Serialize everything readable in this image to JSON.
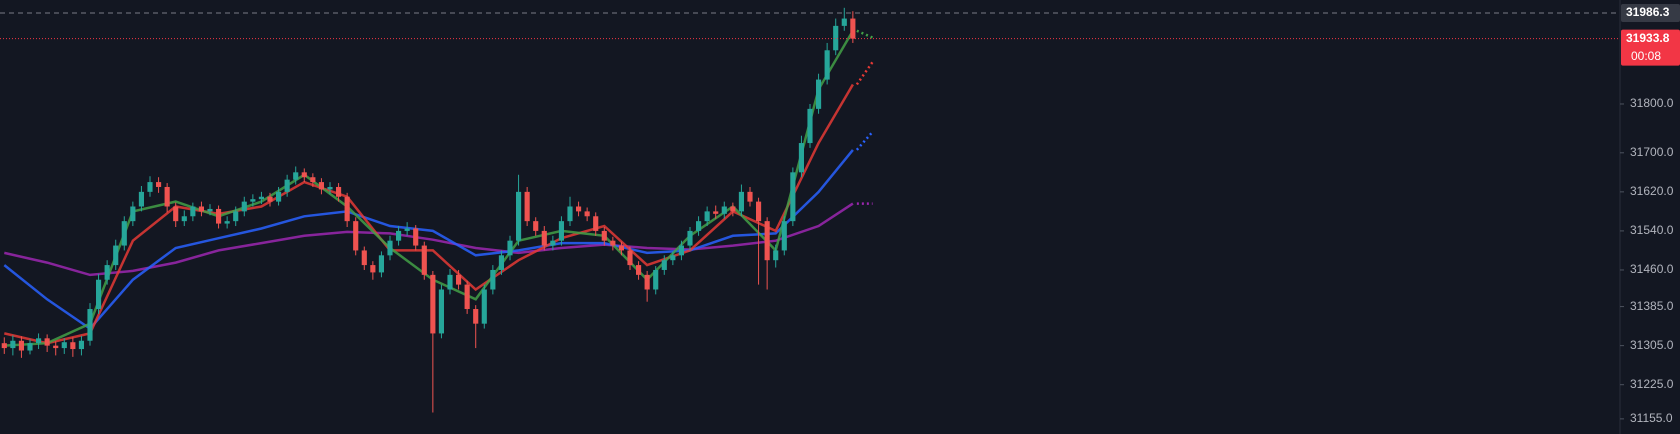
{
  "chart_data": {
    "type": "candlestick",
    "up_color": "#26a69a",
    "down_color": "#ef5350",
    "open": [
      31310,
      31300,
      31315,
      31295,
      31310,
      31320,
      31305,
      31300,
      31312,
      31298,
      31315,
      31380,
      31440,
      31470,
      31510,
      31560,
      31590,
      31620,
      31640,
      31630,
      31590,
      31560,
      31570,
      31590,
      31580,
      31585,
      31555,
      31560,
      31580,
      31600,
      31605,
      31610,
      31600,
      31620,
      31645,
      31660,
      31650,
      31640,
      31625,
      31630,
      31610,
      31560,
      31500,
      31470,
      31455,
      31490,
      31520,
      31540,
      31545,
      31510,
      31450,
      31330,
      31420,
      31450,
      31430,
      31380,
      31350,
      31420,
      31460,
      31490,
      31520,
      31620,
      31560,
      31540,
      31510,
      31520,
      31560,
      31590,
      31580,
      31570,
      31540,
      31520,
      31510,
      31500,
      31470,
      31450,
      31420,
      31460,
      31480,
      31490,
      31510,
      31540,
      31560,
      31580,
      31575,
      31590,
      31580,
      31620,
      31600,
      31560,
      31480,
      31500,
      31560,
      31660,
      31720,
      31790,
      31850,
      31910,
      31960,
      31975
    ],
    "high": [
      31322,
      31326,
      31324,
      31318,
      31330,
      31328,
      31314,
      31320,
      31322,
      31325,
      31392,
      31452,
      31480,
      31522,
      31570,
      31600,
      31632,
      31652,
      31650,
      31638,
      31598,
      31582,
      31598,
      31600,
      31595,
      31592,
      31570,
      31590,
      31610,
      31615,
      31620,
      31618,
      31630,
      31655,
      31672,
      31668,
      31658,
      31648,
      31640,
      31638,
      31618,
      31568,
      31508,
      31478,
      31498,
      31530,
      31550,
      31558,
      31552,
      31518,
      31458,
      31430,
      31462,
      31460,
      31438,
      31388,
      31430,
      31470,
      31500,
      31530,
      31655,
      31630,
      31568,
      31550,
      31530,
      31570,
      31610,
      31600,
      31588,
      31578,
      31548,
      31528,
      31518,
      31508,
      31478,
      31458,
      31468,
      31490,
      31498,
      31520,
      31548,
      31570,
      31590,
      31592,
      31600,
      31598,
      31635,
      31630,
      31608,
      31568,
      31512,
      31570,
      31670,
      31735,
      31800,
      31862,
      31925,
      31975,
      31997,
      31990
    ],
    "low": [
      31288,
      31285,
      31280,
      31287,
      31298,
      31292,
      31285,
      31288,
      31282,
      31285,
      31305,
      31370,
      31430,
      31460,
      31500,
      31550,
      31580,
      31610,
      31618,
      31578,
      31548,
      31550,
      31560,
      31570,
      31572,
      31545,
      31545,
      31550,
      31570,
      31590,
      31595,
      31590,
      31592,
      31610,
      31635,
      31640,
      31630,
      31615,
      31615,
      31600,
      31548,
      31490,
      31460,
      31440,
      31445,
      31480,
      31510,
      31530,
      31500,
      31440,
      31168,
      31320,
      31410,
      31420,
      31370,
      31300,
      31340,
      31410,
      31450,
      31480,
      31510,
      31550,
      31530,
      31500,
      31500,
      31510,
      31550,
      31570,
      31560,
      31530,
      31510,
      31500,
      31490,
      31460,
      31440,
      31395,
      31410,
      31450,
      31470,
      31480,
      31500,
      31530,
      31550,
      31565,
      31565,
      31570,
      31570,
      31590,
      31430,
      31420,
      31465,
      31490,
      31550,
      31650,
      31710,
      31780,
      31840,
      31900,
      31950,
      31925
    ],
    "close": [
      31300,
      31315,
      31295,
      31310,
      31320,
      31305,
      31300,
      31312,
      31298,
      31315,
      31380,
      31440,
      31470,
      31510,
      31560,
      31590,
      31620,
      31640,
      31630,
      31590,
      31560,
      31570,
      31590,
      31580,
      31585,
      31555,
      31560,
      31580,
      31600,
      31605,
      31610,
      31600,
      31620,
      31645,
      31660,
      31650,
      31640,
      31625,
      31630,
      31610,
      31560,
      31500,
      31470,
      31455,
      31490,
      31520,
      31540,
      31545,
      31510,
      31450,
      31330,
      31420,
      31450,
      31430,
      31380,
      31350,
      31420,
      31460,
      31490,
      31520,
      31620,
      31560,
      31540,
      31510,
      31520,
      31560,
      31590,
      31580,
      31570,
      31540,
      31520,
      31510,
      31500,
      31470,
      31450,
      31420,
      31460,
      31480,
      31490,
      31510,
      31540,
      31560,
      31580,
      31575,
      31590,
      31580,
      31620,
      31600,
      31560,
      31480,
      31500,
      31560,
      31660,
      31720,
      31790,
      31850,
      31910,
      31960,
      31975,
      31933.8
    ],
    "ma_x": [
      0,
      5,
      10,
      15,
      20,
      25,
      30,
      35,
      40,
      45,
      50,
      55,
      60,
      65,
      70,
      75,
      80,
      85,
      90,
      95,
      99
    ],
    "series": [
      {
        "color": "#9c27b0",
        "values": [
          31495,
          31475,
          31450,
          31458,
          31475,
          31500,
          31515,
          31530,
          31538,
          31535,
          31522,
          31505,
          31495,
          31505,
          31512,
          31505,
          31502,
          31510,
          31520,
          31550,
          31596
        ],
        "projection": 31596
      },
      {
        "color": "#2962ff",
        "values": [
          31470,
          31400,
          31340,
          31440,
          31505,
          31525,
          31545,
          31570,
          31580,
          31550,
          31540,
          31490,
          31500,
          31515,
          31515,
          31495,
          31500,
          31530,
          31535,
          31620,
          31706
        ],
        "projection": 31743
      },
      {
        "color": "#e53935",
        "values": [
          31330,
          31310,
          31330,
          31520,
          31590,
          31575,
          31590,
          31640,
          31610,
          31500,
          31500,
          31420,
          31480,
          31525,
          31550,
          31470,
          31500,
          31580,
          31540,
          31720,
          31840
        ],
        "projection": 31886
      },
      {
        "color": "#43a047",
        "values": [
          31305,
          31310,
          31350,
          31580,
          31600,
          31570,
          31600,
          31655,
          31590,
          31505,
          31440,
          31400,
          31520,
          31540,
          31530,
          31440,
          31530,
          31590,
          31500,
          31830,
          31950
        ],
        "projection": 31936
      }
    ],
    "ylim": [
      31124,
      32013
    ],
    "yticks": [
      {
        "value": 31155,
        "label": "31155.0"
      },
      {
        "value": 31225,
        "label": "31225.0"
      },
      {
        "value": 31305,
        "label": "31305.0"
      },
      {
        "value": 31385,
        "label": "31385.0"
      },
      {
        "value": 31460,
        "label": "31460.0"
      },
      {
        "value": 31540,
        "label": "31540.0"
      },
      {
        "value": 31620,
        "label": "31620.0"
      },
      {
        "value": 31700,
        "label": "31700.0"
      },
      {
        "value": 31800,
        "label": "31800.0"
      }
    ],
    "high_line": 31986.3,
    "last_price": 31933.8,
    "countdown": "00:08"
  }
}
